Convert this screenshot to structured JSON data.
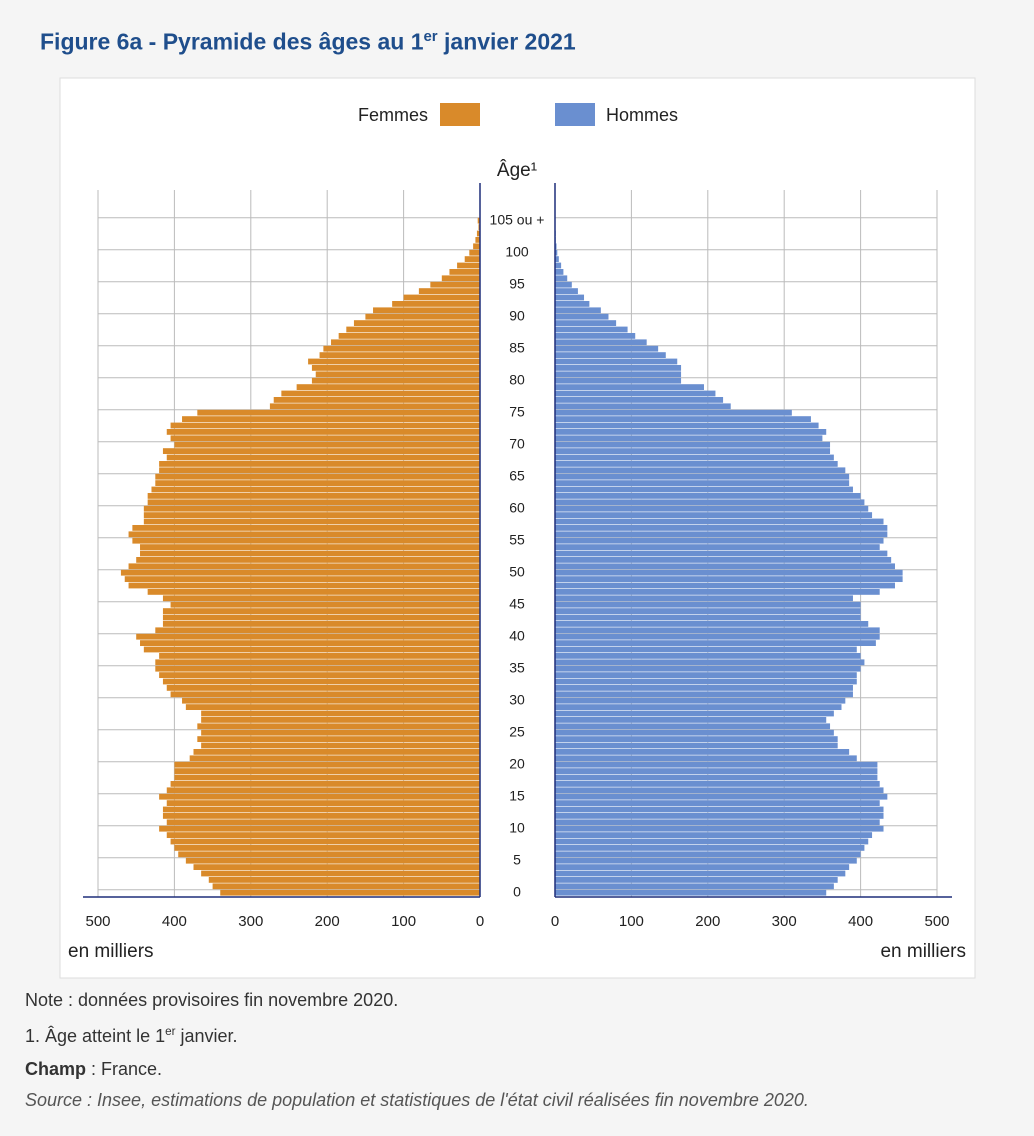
{
  "chart_data": {
    "type": "pyramid",
    "title": [
      "Figure 6a - Pyramide des âges au 1",
      "er",
      " janvier 2021"
    ],
    "ylabel": "Âge¹",
    "xlabel": "en milliers",
    "categories": [
      "0",
      null,
      null,
      null,
      null,
      "5",
      null,
      null,
      null,
      null,
      "10",
      null,
      null,
      null,
      null,
      "15",
      null,
      null,
      null,
      null,
      "20",
      null,
      null,
      null,
      null,
      "25",
      null,
      null,
      null,
      null,
      "30",
      null,
      null,
      null,
      null,
      "35",
      null,
      null,
      null,
      null,
      "40",
      null,
      null,
      null,
      null,
      "45",
      null,
      null,
      null,
      null,
      "50",
      null,
      null,
      null,
      null,
      "55",
      null,
      null,
      null,
      null,
      "60",
      null,
      null,
      null,
      null,
      "65",
      null,
      null,
      null,
      null,
      "70",
      null,
      null,
      null,
      null,
      "75",
      null,
      null,
      null,
      null,
      "80",
      null,
      null,
      null,
      null,
      "85",
      null,
      null,
      null,
      null,
      "90",
      null,
      null,
      null,
      null,
      "95",
      null,
      null,
      null,
      null,
      "100",
      null,
      null,
      null,
      null,
      "105 ou +"
    ],
    "series": [
      {
        "name": "Femmes",
        "color": "#d98a2a",
        "values": [
          340,
          350,
          355,
          365,
          375,
          385,
          395,
          400,
          405,
          410,
          420,
          410,
          415,
          415,
          410,
          420,
          410,
          405,
          400,
          400,
          400,
          380,
          375,
          365,
          370,
          365,
          370,
          365,
          365,
          385,
          390,
          405,
          410,
          415,
          420,
          425,
          425,
          420,
          440,
          445,
          450,
          425,
          415,
          415,
          415,
          405,
          415,
          435,
          460,
          465,
          470,
          460,
          450,
          445,
          445,
          455,
          460,
          455,
          440,
          440,
          440,
          435,
          435,
          430,
          425,
          425,
          420,
          420,
          410,
          415,
          400,
          405,
          410,
          405,
          390,
          370,
          275,
          270,
          260,
          240,
          220,
          215,
          220,
          225,
          210,
          205,
          195,
          185,
          175,
          165,
          150,
          140,
          115,
          100,
          80,
          65,
          50,
          40,
          30,
          20,
          14,
          9,
          6,
          4,
          2,
          3
        ]
      },
      {
        "name": "Hommes",
        "color": "#6a8fd0",
        "values": [
          355,
          365,
          370,
          380,
          385,
          395,
          400,
          405,
          410,
          415,
          430,
          425,
          430,
          430,
          425,
          435,
          430,
          425,
          422,
          422,
          422,
          395,
          385,
          370,
          370,
          365,
          360,
          355,
          365,
          375,
          380,
          390,
          390,
          395,
          395,
          400,
          405,
          400,
          395,
          420,
          425,
          425,
          410,
          400,
          400,
          400,
          390,
          425,
          445,
          455,
          455,
          445,
          440,
          435,
          425,
          430,
          435,
          435,
          430,
          415,
          410,
          405,
          400,
          390,
          385,
          385,
          380,
          370,
          365,
          360,
          360,
          350,
          355,
          345,
          335,
          310,
          230,
          220,
          210,
          195,
          165,
          165,
          165,
          160,
          145,
          135,
          120,
          105,
          95,
          80,
          70,
          60,
          45,
          38,
          30,
          22,
          16,
          11,
          8,
          5,
          3,
          2,
          1,
          1,
          0.5,
          0.5
        ]
      }
    ],
    "xlim": [
      0,
      500
    ],
    "xticks": [
      0,
      100,
      200,
      300,
      400,
      500
    ],
    "grid": true
  },
  "notes": {
    "note": "Note : données provisoires fin novembre 2020.",
    "footnote": [
      "1. Âge atteint le 1",
      "er",
      " janvier."
    ],
    "champ": [
      "Champ",
      " : France."
    ],
    "source": "Source : Insee, estimations de population et statistiques de l'état civil réalisées fin novembre 2020."
  }
}
